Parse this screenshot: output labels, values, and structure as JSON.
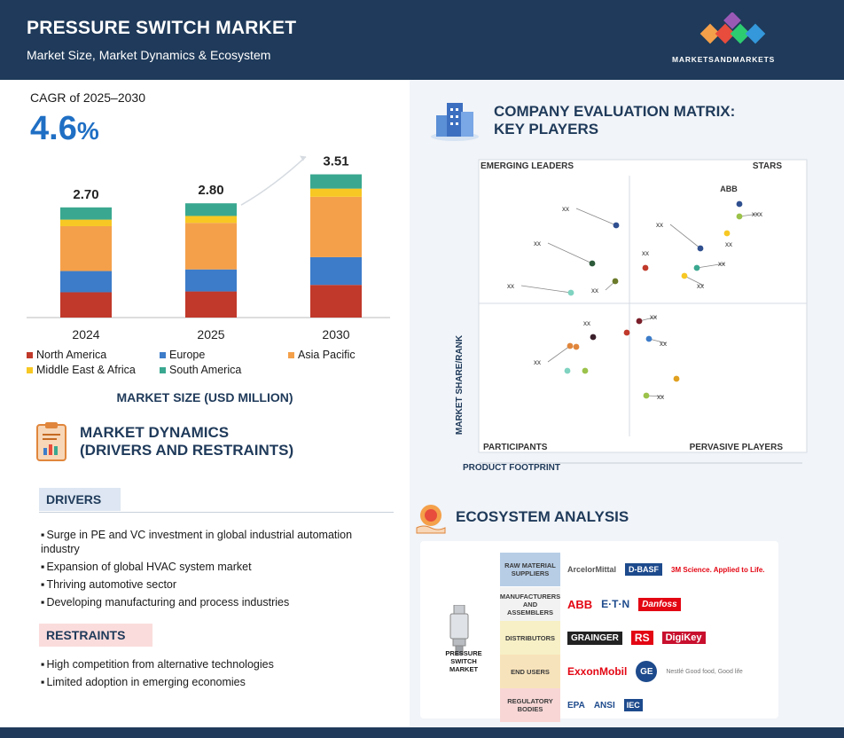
{
  "header": {
    "title": "PRESSURE SWITCH MARKET",
    "subtitle": "Market Size, Market Dynamics & Ecosystem",
    "brand": "MARKETSANDMARKETS"
  },
  "cagr": {
    "label": "CAGR of 2025–2030",
    "value": "4.6",
    "unit": "%"
  },
  "chart_data": {
    "type": "bar",
    "stacked": true,
    "categories": [
      "2024",
      "2025",
      "2030"
    ],
    "totals": [
      "2.70",
      "2.80",
      "3.51"
    ],
    "series": [
      {
        "name": "North America",
        "color": "#c0392b",
        "values": [
          0.62,
          0.64,
          0.8
        ]
      },
      {
        "name": "Europe",
        "color": "#3d7cc9",
        "values": [
          0.52,
          0.54,
          0.68
        ]
      },
      {
        "name": "Asia Pacific",
        "color": "#f4a04a",
        "values": [
          1.1,
          1.14,
          1.48
        ]
      },
      {
        "name": "Middle East & Africa",
        "color": "#f7c823",
        "values": [
          0.16,
          0.17,
          0.2
        ]
      },
      {
        "name": "South America",
        "color": "#3aa890",
        "values": [
          0.3,
          0.31,
          0.35
        ]
      }
    ],
    "xlabel": "MARKET SIZE (USD MILLION)",
    "legend_position": "bottom"
  },
  "market_dynamics": {
    "title_line1": "MARKET DYNAMICS",
    "title_line2": "(DRIVERS AND RESTRAINTS)",
    "drivers_label": "DRIVERS",
    "drivers": [
      "Surge in PE and VC investment in global industrial automation industry",
      "Expansion of global HVAC system market",
      "Thriving automotive sector",
      "Developing manufacturing and process industries"
    ],
    "restraints_label": "RESTRAINTS",
    "restraints": [
      "High competition from alternative technologies",
      "Limited adoption in emerging economies"
    ]
  },
  "matrix": {
    "title_line1": "COMPANY EVALUATION MATRIX:",
    "title_line2": "KEY PLAYERS",
    "quadrants": {
      "top_left": "EMERGING LEADERS",
      "top_right": "STARS",
      "bottom_left": "PARTICIPANTS",
      "bottom_right": "PERVASIVE PLAYERS"
    },
    "y_axis": "MARKET SHARE/RANK",
    "x_axis": "PRODUCT FOOTPRINT",
    "point_labels": [
      "xx",
      "xx",
      "xx",
      "xx",
      "xx",
      "xx",
      "ABB",
      "xxx",
      "xx",
      "xx",
      "xx",
      "xx",
      "xx",
      "xx",
      "xx",
      "xx",
      "xx"
    ]
  },
  "ecosystem": {
    "title": "ECOSYSTEM ANALYSIS",
    "product_label": "PRESSURE SWITCH MARKET",
    "rows": [
      {
        "category": "RAW MATERIAL SUPPLIERS",
        "color": "#b7cde6",
        "logos": [
          "ArcelorMittal",
          "D-BASF",
          "3M Science. Applied to Life."
        ]
      },
      {
        "category": "MANUFACTURERS AND ASSEMBLERS",
        "color": "#f2f2f2",
        "logos": [
          "ABB",
          "E·T·N",
          "Danfoss"
        ]
      },
      {
        "category": "DISTRIBUTORS",
        "color": "#f7f0c6",
        "logos": [
          "GRAINGER",
          "RS",
          "DigiKey"
        ]
      },
      {
        "category": "END USERS",
        "color": "#f7e3bb",
        "logos": [
          "ExxonMobil",
          "GE",
          "Nestlé Good food, Good life"
        ]
      },
      {
        "category": "REGULATORY BODIES",
        "color": "#f8d6d6",
        "logos": [
          "EPA",
          "ANSI",
          "IEC"
        ]
      }
    ]
  }
}
